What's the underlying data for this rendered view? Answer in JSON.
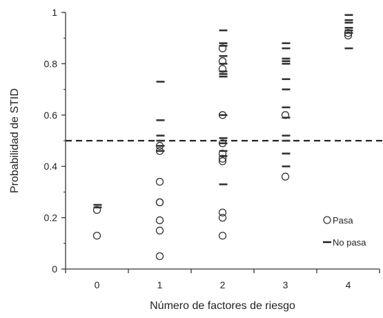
{
  "chart_data": {
    "type": "scatter",
    "title": "",
    "xlabel": "Número de factores de riesgo",
    "ylabel": "Probabilidad de STID",
    "x_ticks": [
      "0",
      "1",
      "2",
      "3",
      "4"
    ],
    "y_ticks": [
      "0",
      "0.2",
      "0.4",
      "0.6",
      "0.8",
      "1"
    ],
    "xlim": [
      -0.5,
      4.5
    ],
    "ylim": [
      0,
      1
    ],
    "reference_line": {
      "y": 0.5,
      "style": "dashed"
    },
    "legend": {
      "position": "bottom-right",
      "entries": [
        "Pasa",
        "No pasa"
      ]
    },
    "series": [
      {
        "name": "Pasa",
        "marker": "circle",
        "color": "#333333",
        "points": [
          [
            0,
            0.23
          ],
          [
            0,
            0.13
          ],
          [
            1,
            0.48
          ],
          [
            1,
            0.46
          ],
          [
            1,
            0.34
          ],
          [
            1,
            0.26
          ],
          [
            1,
            0.26
          ],
          [
            1,
            0.19
          ],
          [
            1,
            0.15
          ],
          [
            1,
            0.05
          ],
          [
            2,
            0.86
          ],
          [
            2,
            0.81
          ],
          [
            2,
            0.78
          ],
          [
            2,
            0.6
          ],
          [
            2,
            0.49
          ],
          [
            2,
            0.45
          ],
          [
            2,
            0.43
          ],
          [
            2,
            0.42
          ],
          [
            2,
            0.22
          ],
          [
            2,
            0.2
          ],
          [
            2,
            0.13
          ],
          [
            3,
            0.6
          ],
          [
            3,
            0.36
          ],
          [
            4,
            0.91
          ],
          [
            4,
            0.92
          ]
        ]
      },
      {
        "name": "No pasa",
        "marker": "dash",
        "color": "#333333",
        "points": [
          [
            0,
            0.25
          ],
          [
            0,
            0.24
          ],
          [
            1,
            0.73
          ],
          [
            1,
            0.58
          ],
          [
            1,
            0.52
          ],
          [
            1,
            0.5
          ],
          [
            1,
            0.48
          ],
          [
            1,
            0.46
          ],
          [
            2,
            0.93
          ],
          [
            2,
            0.88
          ],
          [
            2,
            0.87
          ],
          [
            2,
            0.83
          ],
          [
            2,
            0.8
          ],
          [
            2,
            0.77
          ],
          [
            2,
            0.76
          ],
          [
            2,
            0.75
          ],
          [
            2,
            0.6
          ],
          [
            2,
            0.51
          ],
          [
            2,
            0.49
          ],
          [
            2,
            0.46
          ],
          [
            2,
            0.44
          ],
          [
            2,
            0.33
          ],
          [
            3,
            0.88
          ],
          [
            3,
            0.86
          ],
          [
            3,
            0.82
          ],
          [
            3,
            0.81
          ],
          [
            3,
            0.8
          ],
          [
            3,
            0.74
          ],
          [
            3,
            0.7
          ],
          [
            3,
            0.63
          ],
          [
            3,
            0.59
          ],
          [
            3,
            0.52
          ],
          [
            3,
            0.5
          ],
          [
            3,
            0.45
          ],
          [
            3,
            0.4
          ],
          [
            4,
            0.99
          ],
          [
            4,
            0.97
          ],
          [
            4,
            0.96
          ],
          [
            4,
            0.94
          ],
          [
            4,
            0.93
          ],
          [
            4,
            0.92
          ],
          [
            4,
            0.86
          ]
        ]
      }
    ]
  }
}
